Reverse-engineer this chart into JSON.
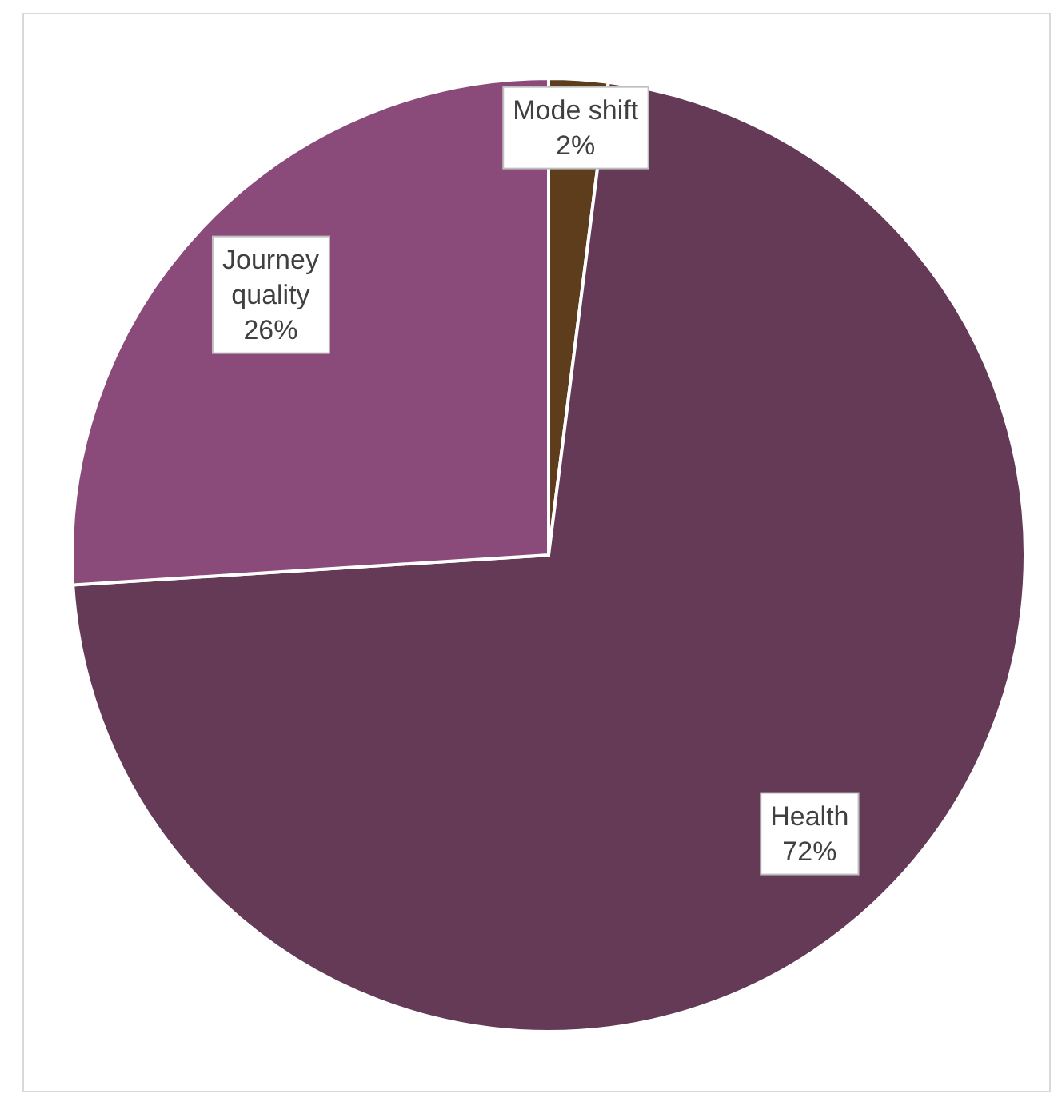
{
  "chart_data": {
    "type": "pie",
    "categories": [
      "Mode shift",
      "Health",
      "Journey quality"
    ],
    "values": [
      2,
      72,
      26
    ],
    "value_labels": [
      "2%",
      "72%",
      "26%"
    ],
    "colors": [
      "#5e3d1c",
      "#643a57",
      "#8a4a7a"
    ]
  }
}
